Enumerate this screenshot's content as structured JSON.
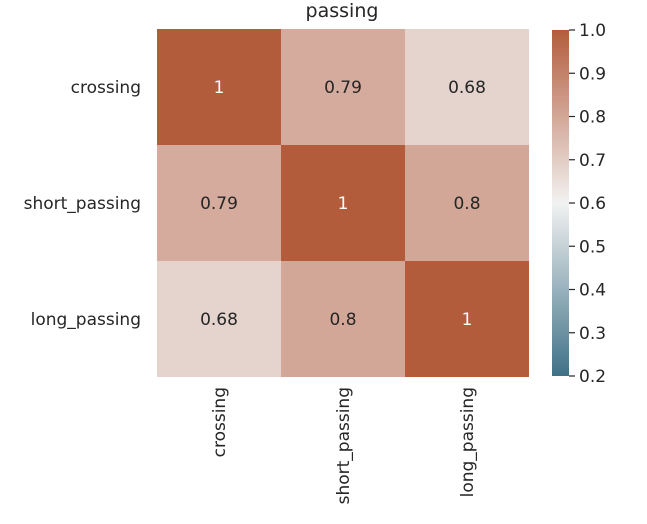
{
  "chart_data": {
    "type": "heatmap",
    "title": "passing",
    "xlabel": "",
    "ylabel": "",
    "x_categories": [
      "crossing",
      "short_passing",
      "long_passing"
    ],
    "y_categories": [
      "crossing",
      "short_passing",
      "long_passing"
    ],
    "values": [
      [
        1,
        0.79,
        0.68
      ],
      [
        0.79,
        1,
        0.8
      ],
      [
        0.68,
        0.8,
        1
      ]
    ],
    "annotations": [
      [
        "1",
        "0.79",
        "0.68"
      ],
      [
        "0.79",
        "1",
        "0.8"
      ],
      [
        "0.68",
        "0.8",
        "1"
      ]
    ],
    "colorbar": {
      "range": [
        0.2,
        1.0
      ],
      "ticks": [
        1.0,
        0.9,
        0.8,
        0.7,
        0.6,
        0.5,
        0.4,
        0.3,
        0.2
      ],
      "tick_labels": [
        "1.0",
        "0.9",
        "0.8",
        "0.7",
        "0.6",
        "0.5",
        "0.4",
        "0.3",
        "0.2"
      ],
      "colormap_stops": [
        {
          "value": 0.2,
          "color": "#3f7187"
        },
        {
          "value": 0.6,
          "color": "#f2f2f2"
        },
        {
          "value": 1.0,
          "color": "#b35c3c"
        }
      ]
    },
    "grid": false,
    "legend": "colorbar-right"
  }
}
